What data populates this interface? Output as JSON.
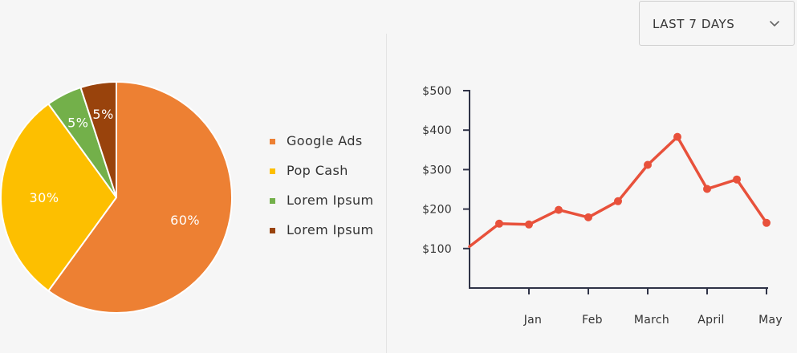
{
  "dropdown": {
    "label": "LAST 7 DAYS"
  },
  "chart_data": [
    {
      "type": "pie",
      "slices": [
        {
          "label": "Google Ads",
          "value": 60,
          "value_label": "60%",
          "color": "#ed8033"
        },
        {
          "label": "Pop Cash",
          "value": 30,
          "value_label": "30%",
          "color": "#fdbf00"
        },
        {
          "label": "Lorem Ipsum",
          "value": 5,
          "value_label": "5%",
          "color": "#73b04a"
        },
        {
          "label": "Lorem Ipsum",
          "value": 5,
          "value_label": "5%",
          "color": "#99430c"
        }
      ],
      "legend": "right"
    },
    {
      "type": "line",
      "categories": [
        "",
        "",
        "Jan",
        "",
        "Feb",
        "",
        "March",
        "",
        "April",
        "",
        "May"
      ],
      "series": [
        {
          "values": [
            105,
            163,
            161,
            198,
            179,
            220,
            312,
            383,
            251,
            275,
            165
          ],
          "color": "#e8513b"
        }
      ],
      "x_tick_labels": [
        "Jan",
        "Feb",
        "March",
        "April",
        "May"
      ],
      "y_tick_labels": [
        "$100",
        "$200",
        "$300",
        "$400",
        "$500"
      ],
      "y_ticks": [
        100,
        200,
        300,
        400,
        500
      ],
      "ylim": [
        0,
        500
      ],
      "grid": false
    }
  ]
}
